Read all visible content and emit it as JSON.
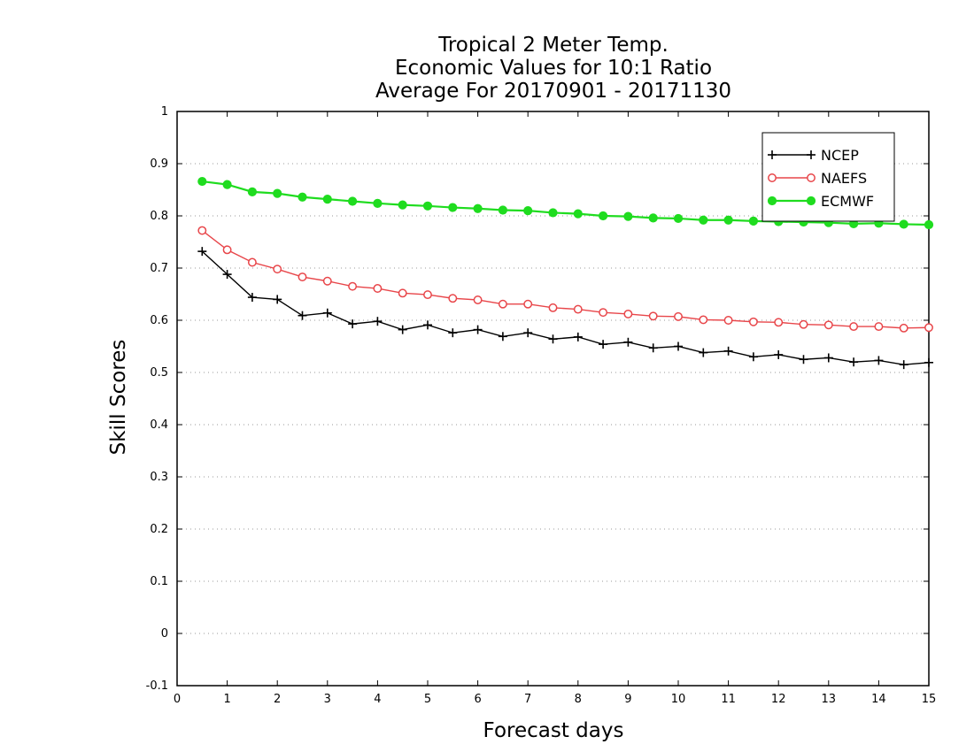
{
  "chart_data": {
    "type": "line",
    "title_lines": [
      "Tropical 2 Meter Temp.",
      "Economic Values for 10:1 Ratio",
      "Average For 20170901 - 20171130"
    ],
    "xlabel": "Forecast days",
    "ylabel": "Skill Scores",
    "xlim": [
      0,
      15
    ],
    "ylim": [
      -0.1,
      1
    ],
    "x_ticks": [
      "0",
      "1",
      "2",
      "3",
      "4",
      "5",
      "6",
      "7",
      "8",
      "9",
      "10",
      "11",
      "12",
      "13",
      "14",
      "15"
    ],
    "y_ticks": [
      "-0.1",
      "0",
      "0.1",
      "0.2",
      "0.3",
      "0.4",
      "0.5",
      "0.6",
      "0.7",
      "0.8",
      "0.9",
      "1"
    ],
    "grid": "horizontal dotted",
    "legend_position": "top-right",
    "x": [
      0.5,
      1,
      1.5,
      2,
      2.5,
      3,
      3.5,
      4,
      4.5,
      5,
      5.5,
      6,
      6.5,
      7,
      7.5,
      8,
      8.5,
      9,
      9.5,
      10,
      10.5,
      11,
      11.5,
      12,
      12.5,
      13,
      13.5,
      14,
      14.5,
      15
    ],
    "series": [
      {
        "name": "NCEP",
        "color": "#000000",
        "marker": "plus",
        "values": [
          0.732,
          0.688,
          0.644,
          0.64,
          0.609,
          0.614,
          0.593,
          0.598,
          0.582,
          0.591,
          0.576,
          0.582,
          0.569,
          0.576,
          0.564,
          0.568,
          0.554,
          0.558,
          0.547,
          0.55,
          0.538,
          0.541,
          0.53,
          0.534,
          0.525,
          0.528,
          0.52,
          0.523,
          0.515,
          0.519
        ]
      },
      {
        "name": "NAEFS",
        "color": "#e8464a",
        "marker": "open-circle",
        "values": [
          0.772,
          0.735,
          0.711,
          0.698,
          0.683,
          0.675,
          0.665,
          0.661,
          0.652,
          0.649,
          0.642,
          0.639,
          0.631,
          0.631,
          0.624,
          0.621,
          0.615,
          0.612,
          0.608,
          0.607,
          0.601,
          0.6,
          0.597,
          0.596,
          0.592,
          0.591,
          0.588,
          0.588,
          0.585,
          0.586
        ]
      },
      {
        "name": "ECMWF",
        "color": "#1fdc1f",
        "marker": "filled-circle",
        "values": [
          0.866,
          0.86,
          0.846,
          0.843,
          0.836,
          0.832,
          0.828,
          0.824,
          0.821,
          0.819,
          0.816,
          0.814,
          0.811,
          0.81,
          0.806,
          0.804,
          0.8,
          0.799,
          0.796,
          0.795,
          0.792,
          0.792,
          0.79,
          0.789,
          0.788,
          0.787,
          0.785,
          0.786,
          0.784,
          0.783
        ]
      }
    ]
  }
}
